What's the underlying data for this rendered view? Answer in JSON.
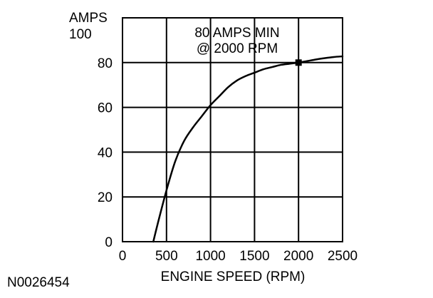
{
  "figure_id": "N0026454",
  "chart_data": {
    "type": "line",
    "title": "",
    "xlabel": "ENGINE SPEED (RPM)",
    "ylabel": "AMPS",
    "xlim": [
      0,
      2500
    ],
    "ylim": [
      0,
      100
    ],
    "x_ticks": [
      0,
      500,
      1000,
      1500,
      2000,
      2500
    ],
    "x_tick_labels": [
      "0",
      "500",
      "1000",
      "1500",
      "2000",
      "2500"
    ],
    "y_ticks": [
      0,
      20,
      40,
      60,
      80,
      100
    ],
    "y_tick_labels": [
      "0",
      "20",
      "40",
      "60",
      "80",
      "100"
    ],
    "grid": true,
    "series": [
      {
        "x": [
          350,
          400,
          500,
          600,
          700,
          800,
          900,
          1000,
          1100,
          1200,
          1300,
          1400,
          1500,
          1600,
          1700,
          1800,
          1900,
          2000,
          2100,
          2200,
          2300,
          2400,
          2500
        ],
        "y": [
          0,
          8,
          23,
          36,
          45,
          51,
          56,
          61,
          65,
          69,
          72,
          74,
          75.5,
          77,
          78,
          79,
          79.5,
          80,
          80.7,
          81.4,
          82,
          82.5,
          82.8
        ]
      }
    ],
    "annotations": [
      {
        "lines": [
          "80 AMPS MIN",
          "@ 2000 RPM"
        ]
      }
    ],
    "markers": [
      {
        "x": 2000,
        "y": 80,
        "shape": "square"
      }
    ],
    "colors": {
      "line": "#000000",
      "grid": "#000000",
      "background": "#ffffff"
    }
  }
}
